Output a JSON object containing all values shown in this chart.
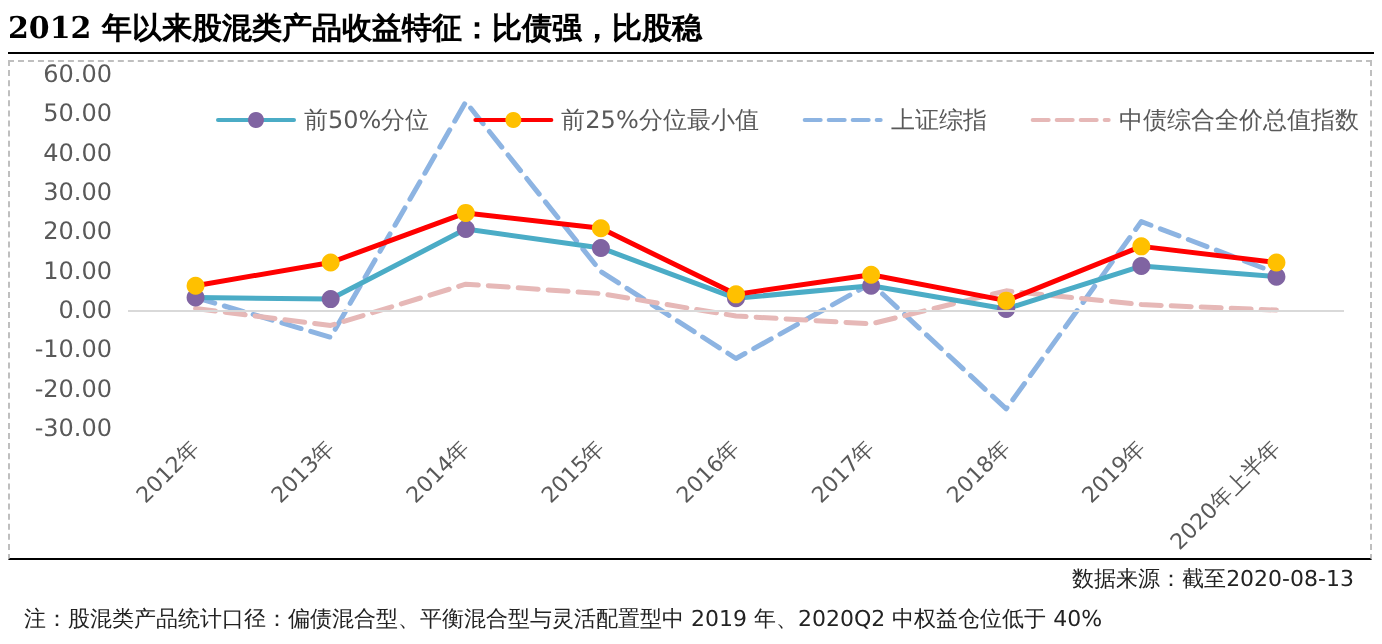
{
  "chart_data": {
    "type": "line",
    "title": "2012 年以来股混类产品收益特征：比债强，比股稳",
    "categories": [
      "2012年",
      "2013年",
      "2014年",
      "2015年",
      "2016年",
      "2017年",
      "2018年",
      "2019年",
      "2020年上半年"
    ],
    "series": [
      {
        "name": "前50%分位",
        "color": "#4bacc6",
        "colors": [
          "#8064a2",
          "#8064a2",
          "#8064a2",
          "#8064a2",
          "#8064a2",
          "#8064a2",
          "#8064a2",
          "#8064a2",
          "#8064a2"
        ],
        "marker": "circle",
        "line_style": "solid",
        "values": [
          3.2,
          2.8,
          20.6,
          15.8,
          3.0,
          6.2,
          0.3,
          11.2,
          8.5
        ]
      },
      {
        "name": "前25%分位最小值",
        "color": "#ff0000",
        "colors": [
          "#ffc000",
          "#ffc000",
          "#ffc000",
          "#ffc000",
          "#ffc000",
          "#ffc000",
          "#ffc000",
          "#ffc000",
          "#ffc000"
        ],
        "marker": "circle",
        "line_style": "solid",
        "values": [
          6.2,
          12.1,
          24.7,
          20.8,
          4.0,
          9.0,
          2.4,
          16.2,
          12.1
        ]
      },
      {
        "name": "上证综指",
        "color": "#8db4e2",
        "marker": "none",
        "line_style": "dashed",
        "values": [
          3.2,
          -6.9,
          52.9,
          9.8,
          -12.3,
          6.8,
          -25.1,
          22.5,
          9.4
        ]
      },
      {
        "name": "中债综合全价总值指数",
        "color": "#e6b8b7",
        "marker": "none",
        "line_style": "dashed",
        "values": [
          0.4,
          -3.9,
          6.6,
          4.2,
          -1.5,
          -3.5,
          4.9,
          1.4,
          0.0
        ]
      }
    ],
    "ylim": [
      -30,
      60
    ],
    "yticks": [
      {
        "value": -30,
        "label": "-30.00"
      },
      {
        "value": -20,
        "label": "-20.00"
      },
      {
        "value": -10,
        "label": "-10.00"
      },
      {
        "value": 0,
        "label": "0.00"
      },
      {
        "value": 10,
        "label": "10.00"
      },
      {
        "value": 20,
        "label": "20.00"
      },
      {
        "value": 30,
        "label": "30.00"
      },
      {
        "value": 40,
        "label": "40.00"
      },
      {
        "value": 50,
        "label": "50.00"
      },
      {
        "value": 60,
        "label": "60.00"
      }
    ],
    "grid": false,
    "ref_lines": [
      {
        "axis": "y",
        "value": 0,
        "color": "#d9d9d9"
      }
    ],
    "legend": "top",
    "annotations": [
      "数据来源：截至2020-08-13",
      "注：股混类产品统计口径：偏债混合型、平衡混合型与灵活配置型中 2019 年、2020Q2 中权益仓位低于 40%"
    ]
  }
}
